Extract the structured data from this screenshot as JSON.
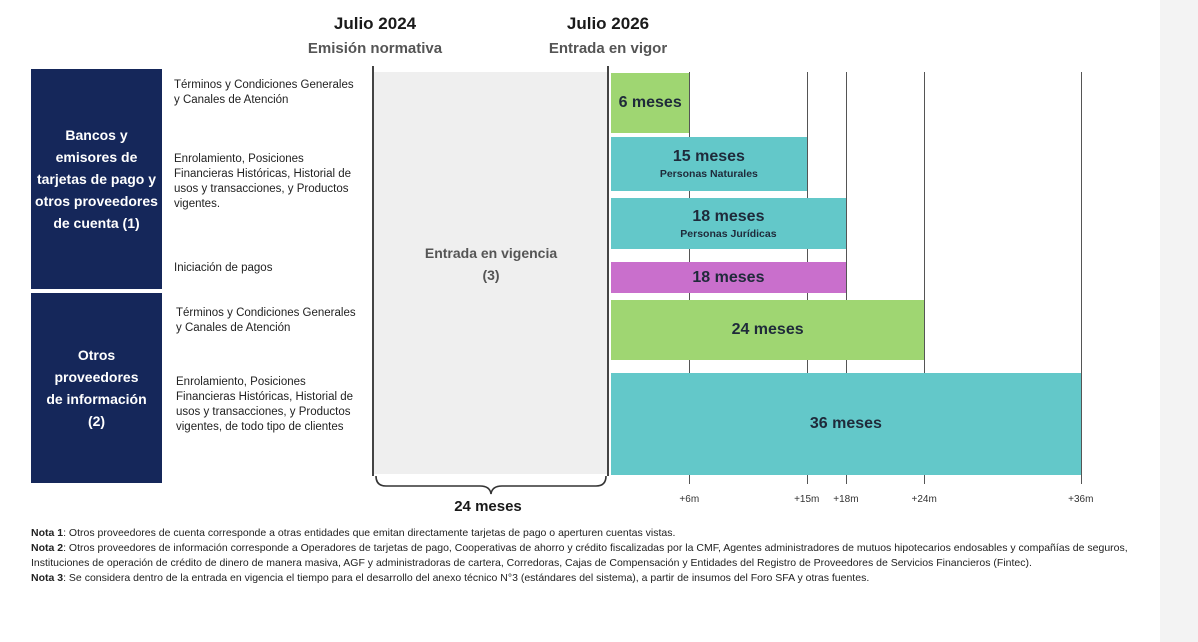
{
  "header": {
    "left_date": "Julio 2024",
    "left_sub": "Emisión normativa",
    "right_date": "Julio 2026",
    "right_sub": "Entrada en vigor"
  },
  "categories": [
    {
      "label": "Bancos y emisores de tarjetas de pago y otros proveedores de cuenta (1)"
    },
    {
      "label": "Otros proveedores de información (2)"
    }
  ],
  "items": [
    "Términos y Condiciones Generales y Canales de Atención",
    "Enrolamiento, Posiciones Financieras Históricas, Historial de usos y transacciones, y Productos vigentes.",
    "Iniciación de pagos",
    "Términos y Condiciones Generales y Canales de Atención",
    "Enrolamiento, Posiciones Financieras Históricas, Historial de usos y transacciones, y Productos vigentes, de todo tipo de clientes"
  ],
  "vigencia": {
    "label": "Entrada en vigencia (3)",
    "duration": "24 meses"
  },
  "bars": [
    {
      "label": "6 meses",
      "sub": "",
      "months": 6,
      "color": "#9fd672"
    },
    {
      "label": "15 meses",
      "sub": "Personas Naturales",
      "months": 15,
      "color": "#63c8c9"
    },
    {
      "label": "18 meses",
      "sub": "Personas Jurídicas",
      "months": 18,
      "color": "#63c8c9"
    },
    {
      "label": "18 meses",
      "sub": "",
      "months": 18,
      "color": "#c96fcc"
    },
    {
      "label": "24 meses",
      "sub": "",
      "months": 24,
      "color": "#9fd672"
    },
    {
      "label": "36 meses",
      "sub": "",
      "months": 36,
      "color": "#63c8c9"
    }
  ],
  "ticks": [
    "+6m",
    "+15m",
    "+18m",
    "+24m",
    "+36m"
  ],
  "notes": [
    {
      "tag": "Nota 1",
      "text": ": Otros proveedores de cuenta corresponde a otras entidades que emitan directamente tarjetas de pago o aperturen cuentas vistas."
    },
    {
      "tag": "Nota 2",
      "text": ": Otros proveedores de información corresponde a Operadores de tarjetas de pago, Cooperativas de ahorro y crédito fiscalizadas por la CMF, Agentes administradores de mutuos hipotecarios endosables y compañías de seguros, Instituciones de operación de crédito de dinero de manera masiva, AGF y administradoras de cartera, Corredoras, Cajas de Compensación y Entidades del Registro de Proveedores de Servicios Financieros (Fintec)."
    },
    {
      "tag": "Nota 3",
      "text": ": Se considera dentro de la entrada en vigencia el tiempo para el desarrollo del anexo técnico N°3 (estándares del sistema), a partir de insumos del Foro SFA y otras fuentes."
    }
  ]
}
